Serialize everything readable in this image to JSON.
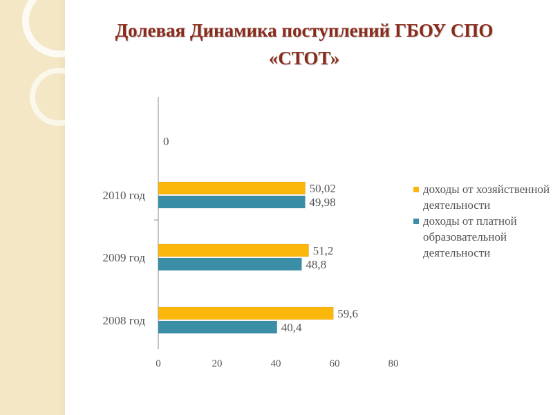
{
  "title_line1": "Долевая Динамика поступлений ГБОУ  СПО",
  "title_line2": "«СТОТ»",
  "colors": {
    "series1": "#fcb70d",
    "series2": "#3a8fa6",
    "title": "#8a2a1a"
  },
  "chart_data": {
    "type": "bar",
    "orientation": "horizontal",
    "categories": [
      "2008 год",
      "2009 год",
      "2010 год"
    ],
    "series": [
      {
        "name": "доходы от хозяйственной деятельности",
        "color": "#fcb70d",
        "values": [
          59.6,
          51.2,
          50.02
        ],
        "labels": [
          "59,6",
          "51,2",
          "50,02"
        ]
      },
      {
        "name": "доходы от платной образовательной деятельности",
        "color": "#3a8fa6",
        "values": [
          40.4,
          48.8,
          49.98
        ],
        "labels": [
          "40,4",
          "48,8",
          "49,98"
        ]
      }
    ],
    "extra_label": "0",
    "xlim": [
      0,
      80
    ],
    "xticks": [
      0,
      20,
      40,
      60,
      80
    ],
    "xtick_labels": [
      "0",
      "20",
      "40",
      "60",
      "80"
    ],
    "grid": false,
    "legend_position": "right"
  },
  "legend": [
    {
      "text": "доходы от хозяйственной деятельности",
      "color": "#fcb70d"
    },
    {
      "text": "доходы от платной образовательной деятельности",
      "color": "#3a8fa6"
    }
  ]
}
